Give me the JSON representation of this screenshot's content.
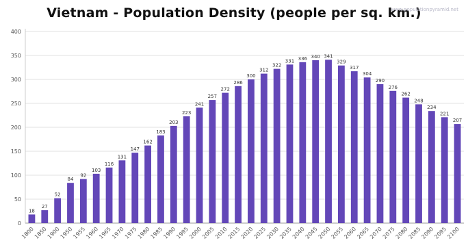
{
  "watermark": "www.populationpyramid.net",
  "chart_data": {
    "type": "bar",
    "title": "Vietnam - Population Density (people per sq. km.)",
    "xlabel": "",
    "ylabel": "",
    "ylim": [
      0,
      400
    ],
    "yticks": [
      0,
      50,
      100,
      150,
      200,
      250,
      300,
      350,
      400
    ],
    "grid": true,
    "legend": "none",
    "bar_color": "#6347b8",
    "categories": [
      "1800",
      "1850",
      "1900",
      "1950",
      "1955",
      "1960",
      "1965",
      "1970",
      "1975",
      "1980",
      "1985",
      "1990",
      "1995",
      "2000",
      "2005",
      "2010",
      "2015",
      "2020",
      "2025",
      "2030",
      "2035",
      "2040",
      "2045",
      "2050",
      "2055",
      "2060",
      "2065",
      "2070",
      "2075",
      "2080",
      "2085",
      "2090",
      "2095",
      "2100"
    ],
    "values": [
      18,
      27,
      52,
      84,
      92,
      103,
      116,
      131,
      147,
      162,
      183,
      203,
      223,
      241,
      257,
      272,
      286,
      300,
      312,
      322,
      331,
      336,
      340,
      341,
      329,
      317,
      304,
      290,
      276,
      262,
      248,
      234,
      221,
      207
    ]
  }
}
